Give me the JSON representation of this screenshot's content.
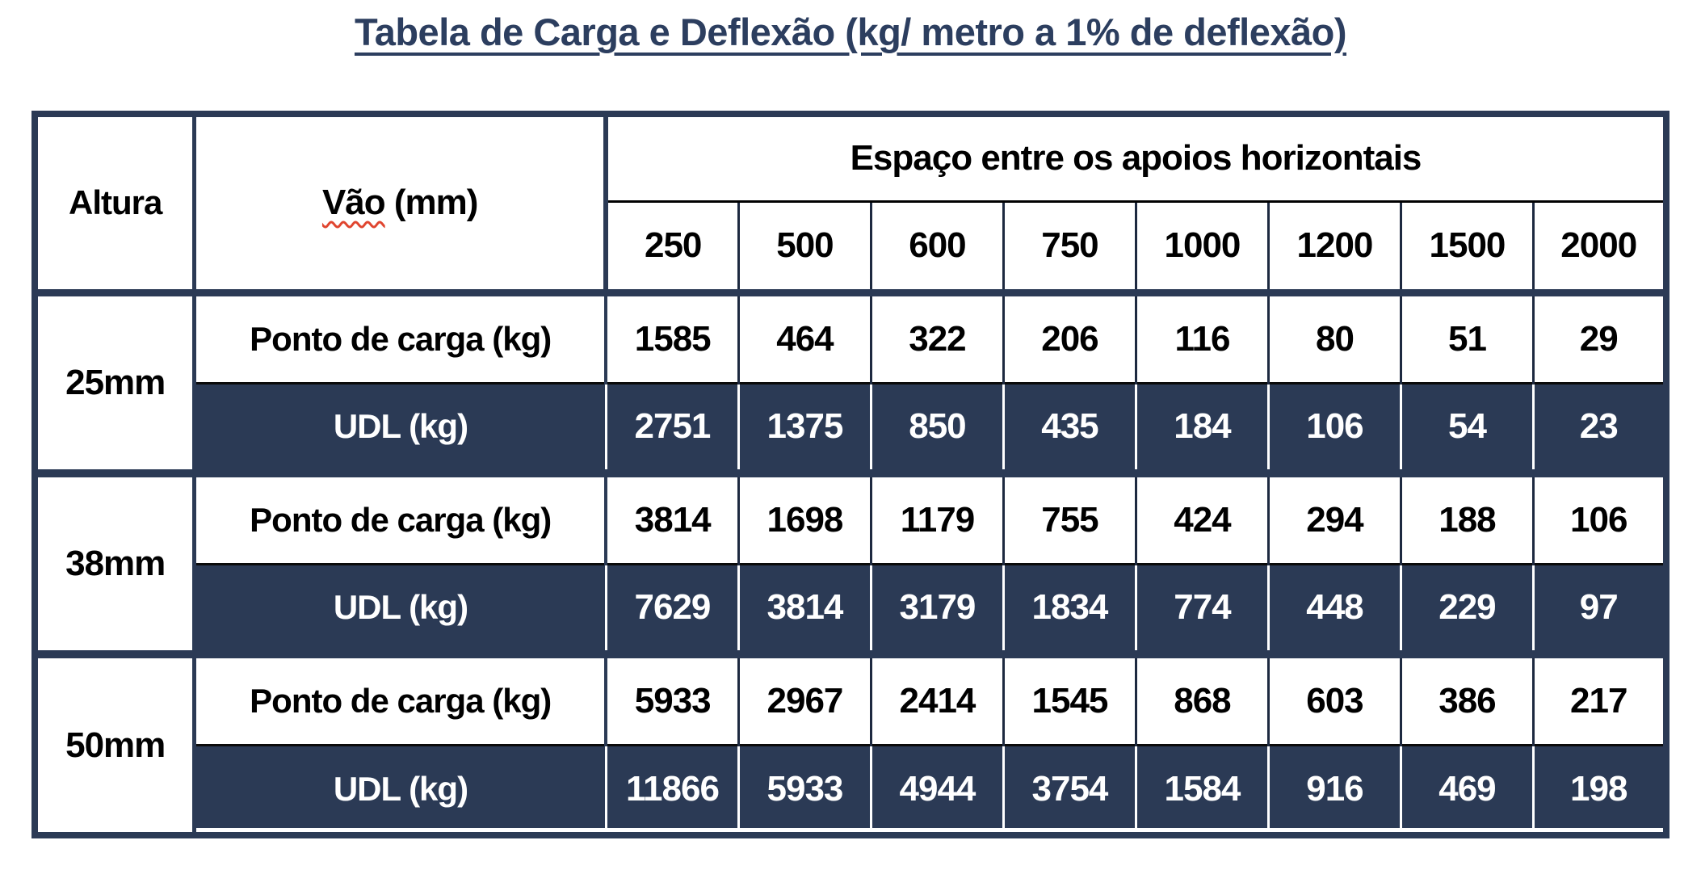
{
  "title": "Tabela de Carga e Deflexão (kg/ metro a 1% de deflexão)",
  "colors": {
    "navy_fill": "#2b3a55",
    "title_navy": "#2c3e5f",
    "grid_line_dark": "#1d2940",
    "spellcheck_squiggle_red": "#e0452f",
    "dark_row_text": "#ffffff",
    "light_row_text": "#000000"
  },
  "table": {
    "corner_header": "Altura",
    "row_header": {
      "word": "Vão",
      "suffix": " (mm)"
    },
    "span_header": "Espaço entre os apoios horizontais",
    "spacing_columns": [
      "250",
      "500",
      "600",
      "750",
      "1000",
      "1200",
      "1500",
      "2000"
    ],
    "groups": [
      {
        "height": "25mm",
        "rows": [
          {
            "label": "Ponto de carga (kg)",
            "style": "light",
            "values": [
              "1585",
              "464",
              "322",
              "206",
              "116",
              "80",
              "51",
              "29"
            ]
          },
          {
            "label": "UDL (kg)",
            "style": "dark",
            "values": [
              "2751",
              "1375",
              "850",
              "435",
              "184",
              "106",
              "54",
              "23"
            ]
          }
        ]
      },
      {
        "height": "38mm",
        "rows": [
          {
            "label": "Ponto de carga (kg)",
            "style": "light",
            "values": [
              "3814",
              "1698",
              "1179",
              "755",
              "424",
              "294",
              "188",
              "106"
            ]
          },
          {
            "label": "UDL (kg)",
            "style": "dark",
            "values": [
              "7629",
              "3814",
              "3179",
              "1834",
              "774",
              "448",
              "229",
              "97"
            ]
          }
        ]
      },
      {
        "height": "50mm",
        "rows": [
          {
            "label": "Ponto de carga (kg)",
            "style": "light",
            "values": [
              "5933",
              "2967",
              "2414",
              "1545",
              "868",
              "603",
              "386",
              "217"
            ]
          },
          {
            "label": "UDL (kg)",
            "style": "dark",
            "values": [
              "11866",
              "5933",
              "4944",
              "3754",
              "1584",
              "916",
              "469",
              "198"
            ]
          }
        ]
      }
    ]
  }
}
